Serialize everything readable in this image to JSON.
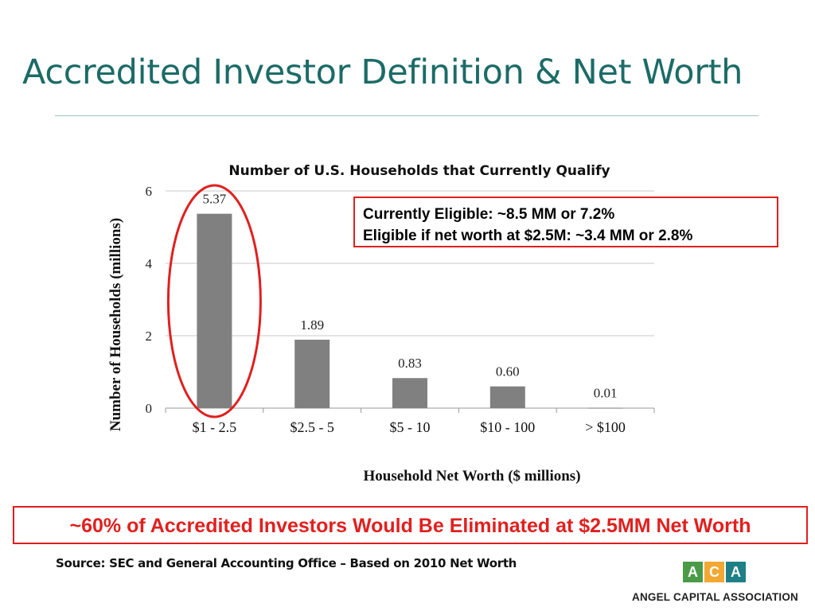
{
  "slide": {
    "title": "Accredited Investor Definition & Net Worth",
    "callout_line1": "Currently Eligible:  ~8.5 MM or 7.2%",
    "callout_line2": "Eligible if net worth at $2.5M:  ~3.4 MM or  2.8%",
    "banner": "~60% of Accredited Investors Would Be Eliminated at $2.5MM Net Worth",
    "source": "Source:  SEC and General Accounting Office – Based on 2010 Net Worth",
    "logo": {
      "letters": [
        "A",
        "C",
        "A"
      ],
      "tile_colors": [
        "#4b9a48",
        "#f2a833",
        "#1f7f86"
      ],
      "name": "ANGEL CAPITAL ASSOCIATION"
    }
  },
  "chart_data": {
    "type": "bar",
    "title": "Number of U.S. Households that Currently Qualify",
    "xlabel": "Household Net Worth ($ millions)",
    "ylabel": "Number of Households (millions)",
    "categories": [
      "$1 - 2.5",
      "$2.5 - 5",
      "$5 - 10",
      "$10 - 100",
      "> $100"
    ],
    "values": [
      5.37,
      1.89,
      0.83,
      0.6,
      0.01
    ],
    "value_labels": [
      "5.37",
      "1.89",
      "0.83",
      "0.60",
      "0.01"
    ],
    "ylim": [
      0,
      6
    ],
    "yticks": [
      0,
      2,
      4,
      6
    ],
    "grid": true,
    "bar_color": "#808080",
    "highlight_color": "#e0201f",
    "highlight_category": "$1 - 2.5"
  }
}
